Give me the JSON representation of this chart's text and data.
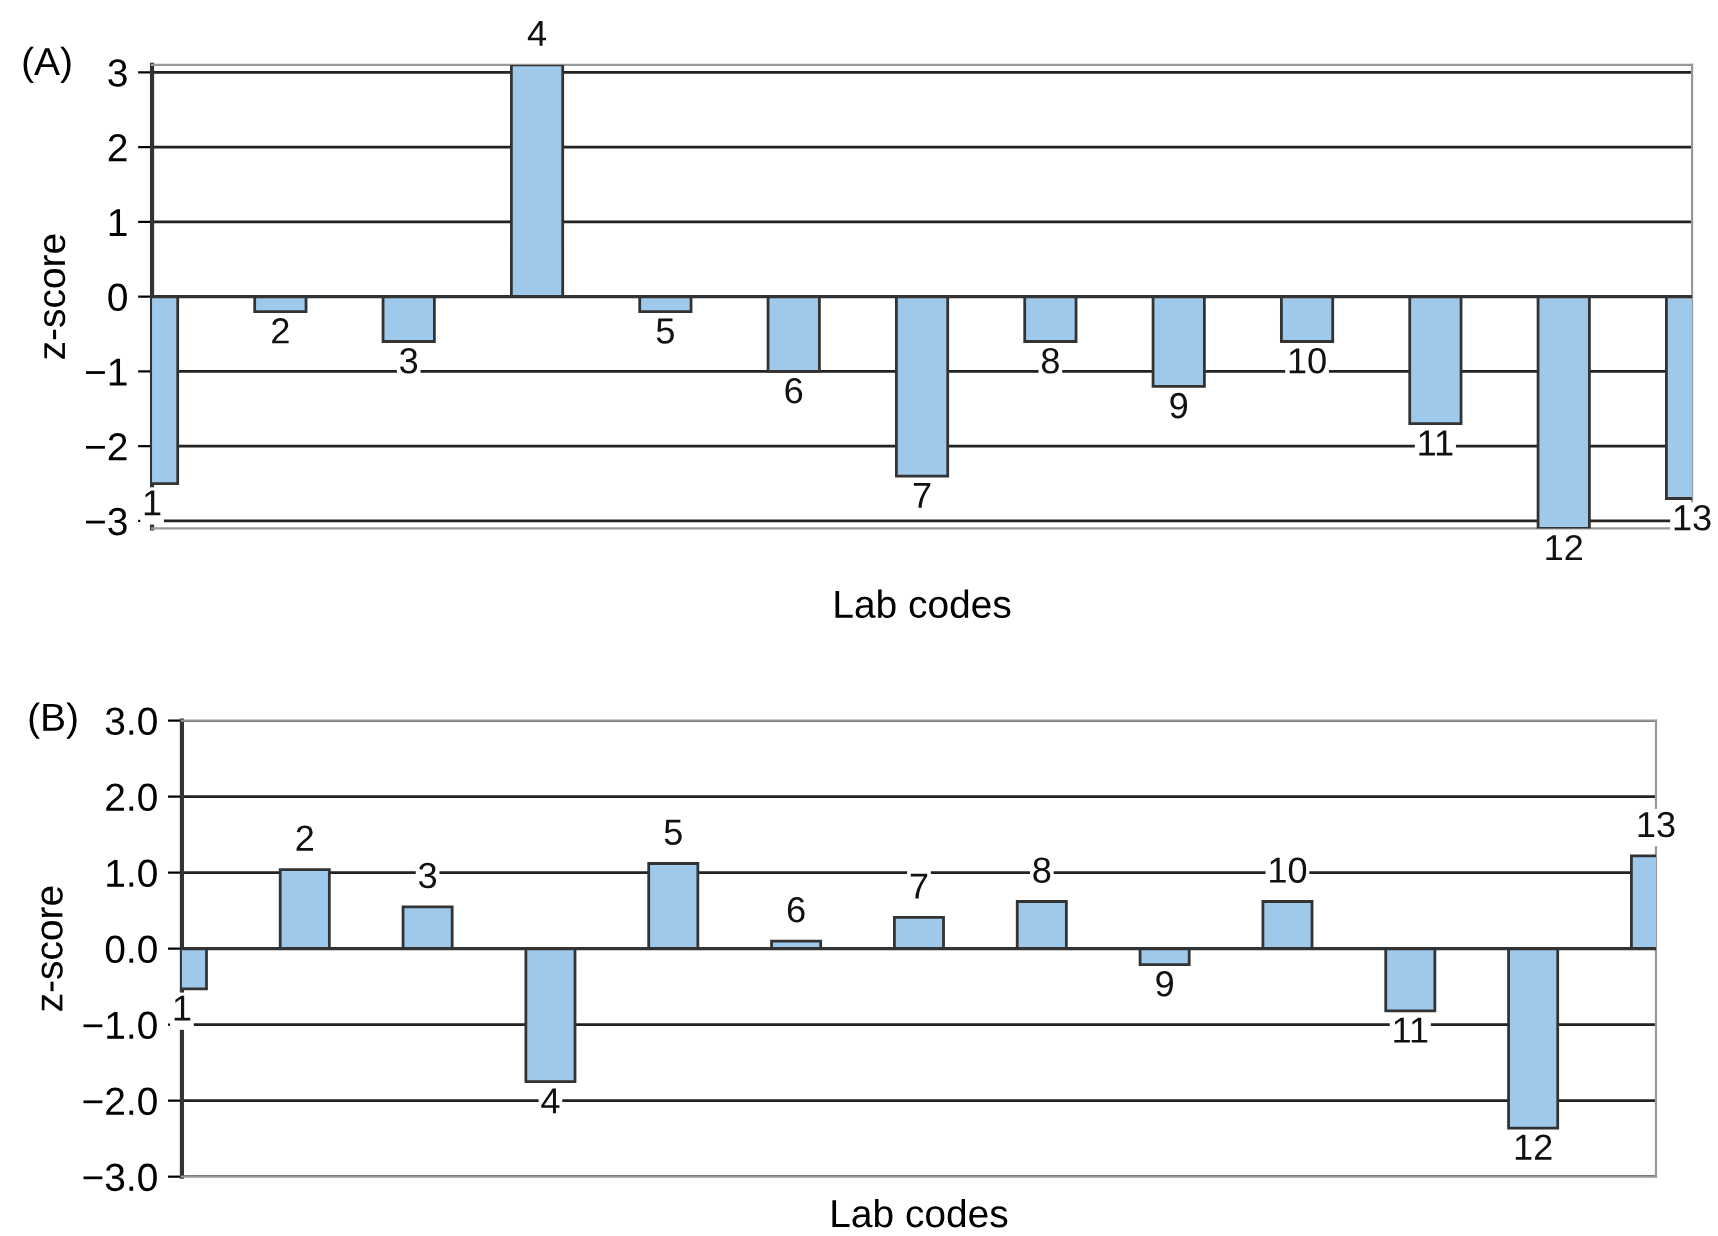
{
  "chart_data": [
    {
      "type": "bar",
      "title": "(A)",
      "xlabel": "Lab codes",
      "ylabel": "z-score",
      "categories": [
        "1",
        "2",
        "3",
        "4",
        "5",
        "6",
        "7",
        "8",
        "9",
        "10",
        "11",
        "12",
        "13"
      ],
      "values": [
        -2.5,
        -0.2,
        -0.6,
        3.1,
        -0.2,
        -1.0,
        -2.4,
        -0.6,
        -1.2,
        -0.6,
        -1.7,
        -3.1,
        -2.7
      ],
      "color": "#9fc9eb",
      "ylim": [
        -3.1,
        3.1
      ],
      "yticks": [
        {
          "value": -3,
          "label": "−3"
        },
        {
          "value": -2,
          "label": "−2"
        },
        {
          "value": -1,
          "label": "−1"
        },
        0,
        1,
        2,
        3
      ],
      "grid": "y",
      "tick_labels": "y"
    },
    {
      "type": "bar",
      "title": "(B)",
      "xlabel": "Lab codes",
      "ylabel": "z-score",
      "categories": [
        "1",
        "2",
        "3",
        "4",
        "5",
        "6",
        "7",
        "8",
        "9",
        "10",
        "11",
        "12",
        "13"
      ],
      "values": [
        -0.53,
        1.04,
        0.55,
        -1.75,
        1.12,
        0.1,
        0.41,
        0.62,
        -0.21,
        0.62,
        -0.82,
        -2.36,
        1.22
      ],
      "color": "#9fc9eb",
      "ylim": [
        -3,
        3
      ],
      "yticks": [
        {
          "value": -3,
          "label": "−3.0"
        },
        {
          "value": -2,
          "label": "−2.0"
        },
        {
          "value": -1,
          "label": "−1.0"
        },
        {
          "value": 0,
          "label": "0.0"
        },
        {
          "value": 1,
          "label": "1.0"
        },
        {
          "value": 2,
          "label": "2.0"
        },
        {
          "value": 3,
          "label": "3.0"
        }
      ],
      "grid": "y",
      "tick_labels": "y"
    }
  ]
}
